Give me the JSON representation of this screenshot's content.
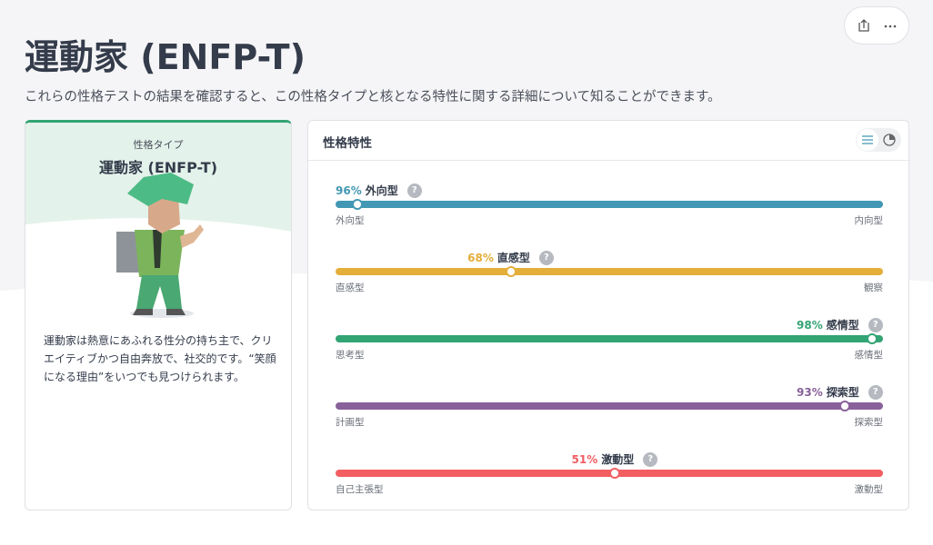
{
  "header": {
    "title": "運動家 (ENFP-T)",
    "subtitle": "これらの性格テストの結果を確認すると、この性格タイプと核となる特性に関する詳細について知ることができます。"
  },
  "type_card": {
    "label": "性格タイプ",
    "name": "運動家 (ENFP-T)",
    "description": "運動家は熱意にあふれる性分の持ち主で、クリエイティブかつ自由奔放で、社交的です。“笑顔になる理由”をいつでも見つけられます。"
  },
  "traits_panel": {
    "title": "性格特性",
    "traits": [
      {
        "name": "外向型",
        "value": 96,
        "value_label": "96%",
        "left": "外向型",
        "right": "内向型",
        "side": "left",
        "color": "#4298b4"
      },
      {
        "name": "直感型",
        "value": 68,
        "value_label": "68%",
        "left": "直感型",
        "right": "観察",
        "side": "left",
        "color": "#e4ae3a"
      },
      {
        "name": "感情型",
        "value": 98,
        "value_label": "98%",
        "left": "思考型",
        "right": "感情型",
        "side": "right",
        "color": "#33a474"
      },
      {
        "name": "探索型",
        "value": 93,
        "value_label": "93%",
        "left": "計画型",
        "right": "探索型",
        "side": "right",
        "color": "#88619a"
      },
      {
        "name": "激動型",
        "value": 51,
        "value_label": "51%",
        "left": "自己主張型",
        "right": "激動型",
        "side": "right",
        "color": "#f25e62"
      }
    ]
  }
}
